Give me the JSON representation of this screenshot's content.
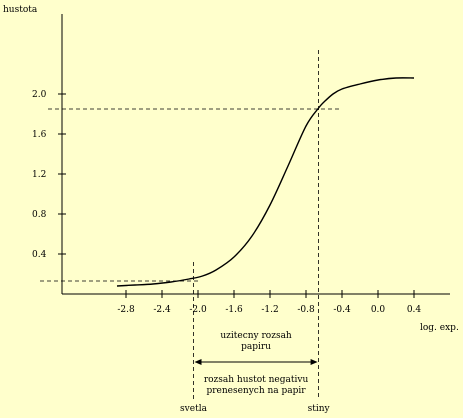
{
  "chart_data": {
    "type": "line",
    "ylabel": "hustota",
    "xlabel": "log. exp.",
    "xlim": [
      -3.0,
      0.8
    ],
    "ylim": [
      0.0,
      2.4
    ],
    "x_ticks": [
      "-2.8",
      "-2.4",
      "-2.0",
      "-1.6",
      "-1.2",
      "-0.8",
      "-0.4",
      "0.0",
      "0.4"
    ],
    "x_tick_values": [
      -2.8,
      -2.4,
      -2.0,
      -1.6,
      -1.2,
      -0.8,
      -0.4,
      0.0,
      0.4
    ],
    "y_ticks": [
      "0.4",
      "0.8",
      "1.2",
      "1.6",
      "2.0"
    ],
    "y_tick_values": [
      0.4,
      0.8,
      1.2,
      1.6,
      2.0
    ],
    "series": [
      {
        "x": [
          -2.9,
          -2.7,
          -2.5,
          -2.3,
          -2.1,
          -1.95,
          -1.8,
          -1.6,
          -1.4,
          -1.2,
          -1.0,
          -0.8,
          -0.66,
          -0.6,
          -0.5,
          -0.4,
          -0.2,
          0.0,
          0.2,
          0.4
        ],
        "y": [
          0.08,
          0.09,
          0.1,
          0.12,
          0.15,
          0.18,
          0.24,
          0.37,
          0.58,
          0.89,
          1.28,
          1.68,
          1.86,
          1.92,
          2.0,
          2.05,
          2.1,
          2.14,
          2.16,
          2.16
        ]
      }
    ],
    "guides": {
      "light_x": -2.05,
      "light_y": 0.13,
      "shadow_x": -0.66,
      "shadow_y": 1.85
    },
    "annotations": {
      "useful_range": [
        "uzitecny rozsah",
        "papiru"
      ],
      "negative_range": [
        "rozsah hustot negativu",
        "prenesenych na papir"
      ],
      "light_label": "svetla",
      "shadow_label": "stiny"
    }
  }
}
